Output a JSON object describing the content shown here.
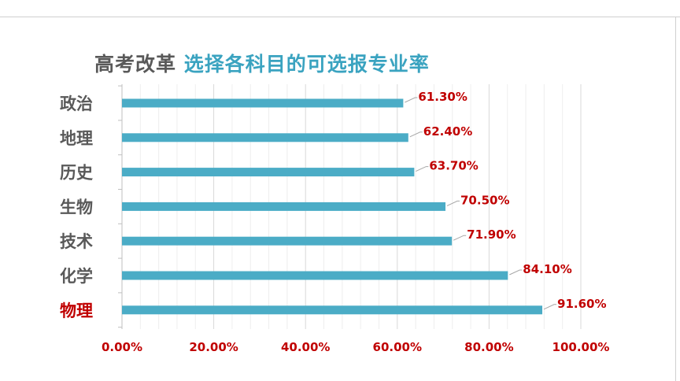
{
  "title": {
    "prefix": "高考改革",
    "main": "选择各科目的可选报专业率"
  },
  "colors": {
    "bar": "#4bacc6",
    "highlight_label": "#c00000",
    "category_label": "#595959",
    "value_label": "#c00000",
    "title_accent": "#3aa3c0"
  },
  "chart_data": {
    "type": "bar",
    "orientation": "horizontal",
    "categories": [
      "政治",
      "地理",
      "历史",
      "生物",
      "技术",
      "化学",
      "物理"
    ],
    "values": [
      61.3,
      62.4,
      63.7,
      70.5,
      71.9,
      84.1,
      91.6
    ],
    "value_labels": [
      "61.30%",
      "62.40%",
      "63.70%",
      "70.50%",
      "71.90%",
      "84.10%",
      "91.60%"
    ],
    "highlight_category": "物理",
    "xlim": [
      0,
      100
    ],
    "x_ticks": [
      0,
      20,
      40,
      60,
      80,
      100
    ],
    "x_tick_labels": [
      "0.00%",
      "20.00%",
      "40.00%",
      "60.00%",
      "80.00%",
      "100.00%"
    ],
    "grid": true,
    "title": "高考改革 选择各科目的可选报专业率"
  }
}
